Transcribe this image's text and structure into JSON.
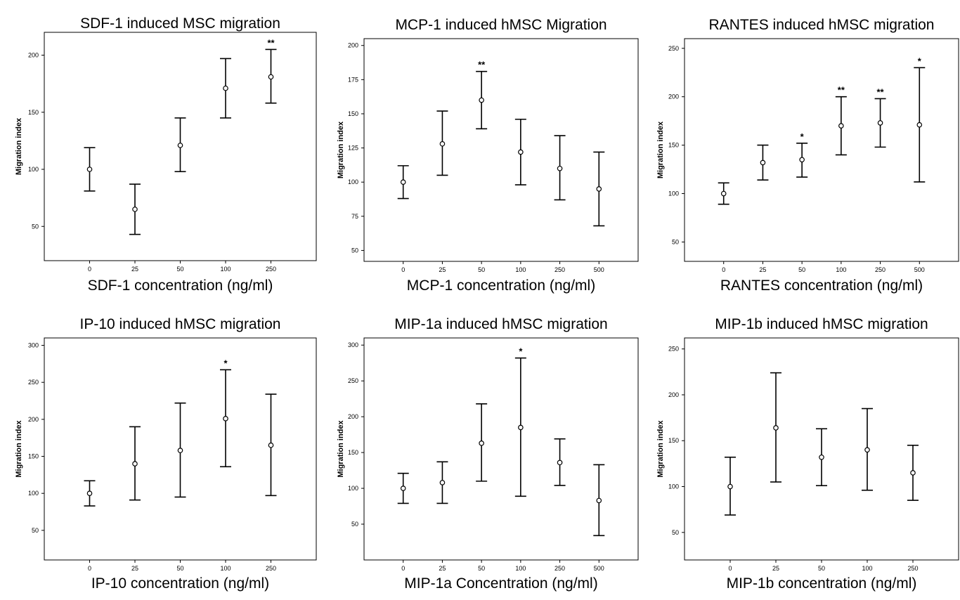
{
  "chart_data": [
    {
      "type": "scatter",
      "title": "SDF-1 induced MSC migration",
      "xlabel": "SDF-1 concentration (ng/ml)",
      "ylabel": "Migration index",
      "categories": [
        "0",
        "25",
        "50",
        "100",
        "250"
      ],
      "yticks": [
        50,
        100,
        150,
        200
      ],
      "ylim": [
        20,
        220
      ],
      "mean": [
        100,
        65,
        121,
        171,
        181
      ],
      "lower": [
        81,
        43,
        98,
        145,
        158
      ],
      "upper": [
        119,
        87,
        145,
        197,
        205
      ],
      "significance": [
        "",
        "",
        "",
        "",
        "**"
      ],
      "grid": false
    },
    {
      "type": "scatter",
      "title": "MCP-1 induced hMSC Migration",
      "xlabel": "MCP-1 concentration (ng/ml)",
      "ylabel": "Migration index",
      "categories": [
        "0",
        "25",
        "50",
        "100",
        "250",
        "500"
      ],
      "yticks": [
        50,
        75,
        100,
        125,
        150,
        175,
        200
      ],
      "ylim": [
        42,
        205
      ],
      "mean": [
        100,
        128,
        160,
        122,
        110,
        95
      ],
      "lower": [
        88,
        105,
        139,
        98,
        87,
        68
      ],
      "upper": [
        112,
        152,
        181,
        146,
        134,
        122
      ],
      "significance": [
        "",
        "",
        "**",
        "",
        "",
        ""
      ],
      "grid": false
    },
    {
      "type": "scatter",
      "title": "RANTES induced hMSC migration",
      "xlabel": "RANTES concentration (ng/ml)",
      "ylabel": "Migration index",
      "categories": [
        "0",
        "25",
        "50",
        "100",
        "250",
        "500"
      ],
      "yticks": [
        50,
        100,
        150,
        200,
        250
      ],
      "ylim": [
        30,
        260
      ],
      "mean": [
        100,
        132,
        135,
        170,
        173,
        171
      ],
      "lower": [
        89,
        114,
        117,
        140,
        148,
        112
      ],
      "upper": [
        111,
        150,
        152,
        200,
        198,
        230
      ],
      "significance": [
        "",
        "",
        "*",
        "**",
        "**",
        "*"
      ],
      "grid": false
    },
    {
      "type": "scatter",
      "title": "IP-10 induced hMSC migration",
      "xlabel": "IP-10 concentration (ng/ml)",
      "ylabel": "Migration index",
      "categories": [
        "0",
        "25",
        "50",
        "100",
        "250"
      ],
      "yticks": [
        50,
        100,
        150,
        200,
        250,
        300
      ],
      "ylim": [
        10,
        310
      ],
      "mean": [
        100,
        140,
        158,
        201,
        165
      ],
      "lower": [
        83,
        91,
        95,
        136,
        97
      ],
      "upper": [
        117,
        190,
        222,
        267,
        234
      ],
      "significance": [
        "",
        "",
        "",
        "*",
        ""
      ],
      "grid": false
    },
    {
      "type": "scatter",
      "title": "MIP-1a induced hMSC migration",
      "xlabel": "MIP-1a Concentration (ng/ml)",
      "ylabel": "Migration index",
      "categories": [
        "0",
        "25",
        "50",
        "100",
        "250",
        "500"
      ],
      "yticks": [
        50,
        100,
        150,
        200,
        250,
        300
      ],
      "ylim": [
        0,
        310
      ],
      "mean": [
        100,
        108,
        163,
        185,
        136,
        83
      ],
      "lower": [
        79,
        79,
        110,
        89,
        104,
        34
      ],
      "upper": [
        121,
        137,
        218,
        282,
        169,
        133
      ],
      "significance": [
        "",
        "",
        "",
        "*",
        "",
        ""
      ],
      "grid": false
    },
    {
      "type": "scatter",
      "title": "MIP-1b induced hMSC migration",
      "xlabel": "MIP-1b concentration (ng/ml)",
      "ylabel": "Migration index",
      "categories": [
        "0",
        "25",
        "50",
        "100",
        "250"
      ],
      "yticks": [
        50,
        100,
        150,
        200,
        250
      ],
      "ylim": [
        20,
        262
      ],
      "mean": [
        100,
        164,
        132,
        140,
        115
      ],
      "lower": [
        69,
        105,
        101,
        96,
        85
      ],
      "upper": [
        132,
        224,
        163,
        185,
        145
      ],
      "significance": [
        "",
        "",
        "",
        "",
        ""
      ],
      "grid": false
    }
  ]
}
